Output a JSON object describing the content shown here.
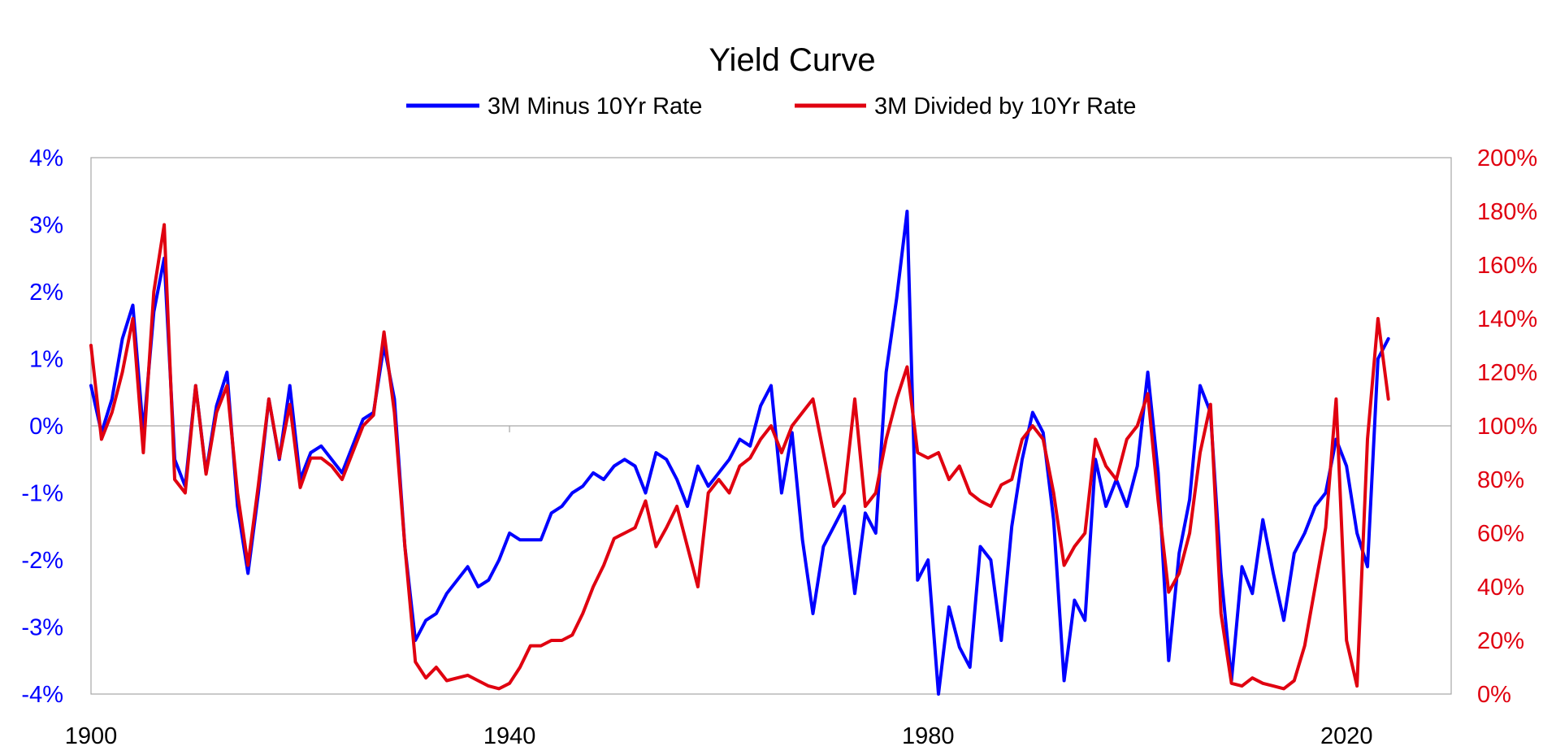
{
  "chart_data": {
    "type": "line",
    "title": "Yield Curve",
    "x_ticks": [
      "1900",
      "1940",
      "1980",
      "2020"
    ],
    "xlim": [
      1900,
      2030
    ],
    "y_left": {
      "ticks": [
        "4%",
        "3%",
        "2%",
        "1%",
        "0%",
        "-1%",
        "-2%",
        "-3%",
        "-4%"
      ],
      "ylim": [
        -4,
        4
      ],
      "unit": "%"
    },
    "y_right": {
      "ticks": [
        "200%",
        "180%",
        "160%",
        "140%",
        "120%",
        "100%",
        "80%",
        "60%",
        "40%",
        "20%",
        "0%"
      ],
      "ylim": [
        0,
        200
      ],
      "unit": "%"
    },
    "grid": "horizontal zero line",
    "legend_position": "top-center",
    "series": [
      {
        "name": "3M Minus 10Yr Rate",
        "axis": "left",
        "color": "#0000ff",
        "x": [
          1900,
          1901,
          1902,
          1903,
          1904,
          1905,
          1906,
          1907,
          1908,
          1909,
          1910,
          1911,
          1912,
          1913,
          1914,
          1915,
          1916,
          1917,
          1918,
          1919,
          1920,
          1921,
          1922,
          1923,
          1924,
          1925,
          1926,
          1927,
          1928,
          1929,
          1930,
          1931,
          1932,
          1933,
          1934,
          1935,
          1936,
          1937,
          1938,
          1939,
          1940,
          1941,
          1942,
          1943,
          1944,
          1945,
          1946,
          1947,
          1948,
          1949,
          1950,
          1951,
          1952,
          1953,
          1954,
          1955,
          1956,
          1957,
          1958,
          1959,
          1960,
          1961,
          1962,
          1963,
          1964,
          1965,
          1966,
          1967,
          1968,
          1969,
          1970,
          1971,
          1972,
          1973,
          1974,
          1975,
          1976,
          1977,
          1978,
          1979,
          1980,
          1981,
          1982,
          1983,
          1984,
          1985,
          1986,
          1987,
          1988,
          1989,
          1990,
          1991,
          1992,
          1993,
          1994,
          1995,
          1996,
          1997,
          1998,
          1999,
          2000,
          2001,
          2002,
          2003,
          2004,
          2005,
          2006,
          2007,
          2008,
          2009,
          2010,
          2011,
          2012,
          2013,
          2014,
          2015,
          2016,
          2017,
          2018,
          2019,
          2020,
          2021,
          2022,
          2023,
          2024
        ],
        "values": [
          0.6,
          -0.1,
          0.4,
          1.3,
          1.8,
          -0.1,
          1.7,
          2.5,
          -0.5,
          -0.9,
          0.6,
          -0.7,
          0.3,
          0.8,
          -1.2,
          -2.2,
          -1.0,
          0.4,
          -0.5,
          0.6,
          -0.8,
          -0.4,
          -0.3,
          -0.5,
          -0.7,
          -0.3,
          0.1,
          0.2,
          1.2,
          0.4,
          -1.8,
          -3.2,
          -2.9,
          -2.8,
          -2.5,
          -2.3,
          -2.1,
          -2.4,
          -2.3,
          -2.0,
          -1.6,
          -1.7,
          -1.7,
          -1.7,
          -1.3,
          -1.2,
          -1.0,
          -0.9,
          -0.7,
          -0.8,
          -0.6,
          -0.5,
          -0.6,
          -1.0,
          -0.4,
          -0.5,
          -0.8,
          -1.2,
          -0.6,
          -0.9,
          -0.7,
          -0.5,
          -0.2,
          -0.3,
          0.3,
          0.6,
          -1.0,
          -0.1,
          -1.7,
          -2.8,
          -1.8,
          -1.5,
          -1.2,
          -2.5,
          -1.3,
          -1.6,
          0.8,
          1.9,
          3.2,
          -2.3,
          -2.0,
          -4.0,
          -2.7,
          -3.3,
          -3.6,
          -1.8,
          -2.0,
          -3.2,
          -1.5,
          -0.5,
          0.2,
          -0.1,
          -1.4,
          -3.8,
          -2.6,
          -2.9,
          -0.5,
          -1.2,
          -0.8,
          -1.2,
          -0.6,
          0.8,
          -0.7,
          -3.5,
          -1.9,
          -1.1,
          0.6,
          0.2,
          -2.2,
          -3.8,
          -2.1,
          -2.5,
          -1.4,
          -2.2,
          -2.9,
          -1.9,
          -1.6,
          -1.2,
          -1.0,
          -0.2,
          -0.6,
          -1.6,
          -2.1,
          1.0,
          1.3
        ]
      },
      {
        "name": "3M Divided by 10Yr Rate",
        "axis": "right",
        "color": "#e00010",
        "x": [
          1900,
          1901,
          1902,
          1903,
          1904,
          1905,
          1906,
          1907,
          1908,
          1909,
          1910,
          1911,
          1912,
          1913,
          1914,
          1915,
          1916,
          1917,
          1918,
          1919,
          1920,
          1921,
          1922,
          1923,
          1924,
          1925,
          1926,
          1927,
          1928,
          1929,
          1930,
          1931,
          1932,
          1933,
          1934,
          1935,
          1936,
          1937,
          1938,
          1939,
          1940,
          1941,
          1942,
          1943,
          1944,
          1945,
          1946,
          1947,
          1948,
          1949,
          1950,
          1951,
          1952,
          1953,
          1954,
          1955,
          1956,
          1957,
          1958,
          1959,
          1960,
          1961,
          1962,
          1963,
          1964,
          1965,
          1966,
          1967,
          1968,
          1969,
          1970,
          1971,
          1972,
          1973,
          1974,
          1975,
          1976,
          1977,
          1978,
          1979,
          1980,
          1981,
          1982,
          1983,
          1984,
          1985,
          1986,
          1987,
          1988,
          1989,
          1990,
          1991,
          1992,
          1993,
          1994,
          1995,
          1996,
          1997,
          1998,
          1999,
          2000,
          2001,
          2002,
          2003,
          2004,
          2005,
          2006,
          2007,
          2008,
          2009,
          2010,
          2011,
          2012,
          2013,
          2014,
          2015,
          2016,
          2017,
          2018,
          2019,
          2020,
          2021,
          2022,
          2023,
          2024
        ],
        "values": [
          130,
          95,
          105,
          120,
          140,
          90,
          150,
          175,
          80,
          75,
          115,
          82,
          105,
          115,
          75,
          48,
          78,
          110,
          88,
          108,
          77,
          88,
          88,
          85,
          80,
          90,
          100,
          104,
          135,
          105,
          55,
          12,
          6,
          10,
          5,
          6,
          7,
          5,
          3,
          2,
          4,
          10,
          18,
          18,
          20,
          20,
          22,
          30,
          40,
          48,
          58,
          60,
          62,
          72,
          55,
          62,
          70,
          55,
          40,
          75,
          80,
          75,
          85,
          88,
          95,
          100,
          90,
          100,
          105,
          110,
          90,
          70,
          75,
          110,
          70,
          75,
          95,
          110,
          122,
          90,
          88,
          90,
          80,
          85,
          75,
          72,
          70,
          78,
          80,
          95,
          100,
          95,
          75,
          48,
          55,
          60,
          95,
          85,
          80,
          95,
          100,
          112,
          72,
          38,
          45,
          60,
          90,
          108,
          30,
          4,
          3,
          6,
          4,
          3,
          2,
          5,
          18,
          40,
          62,
          110,
          20,
          3,
          95,
          140,
          110
        ]
      }
    ]
  }
}
